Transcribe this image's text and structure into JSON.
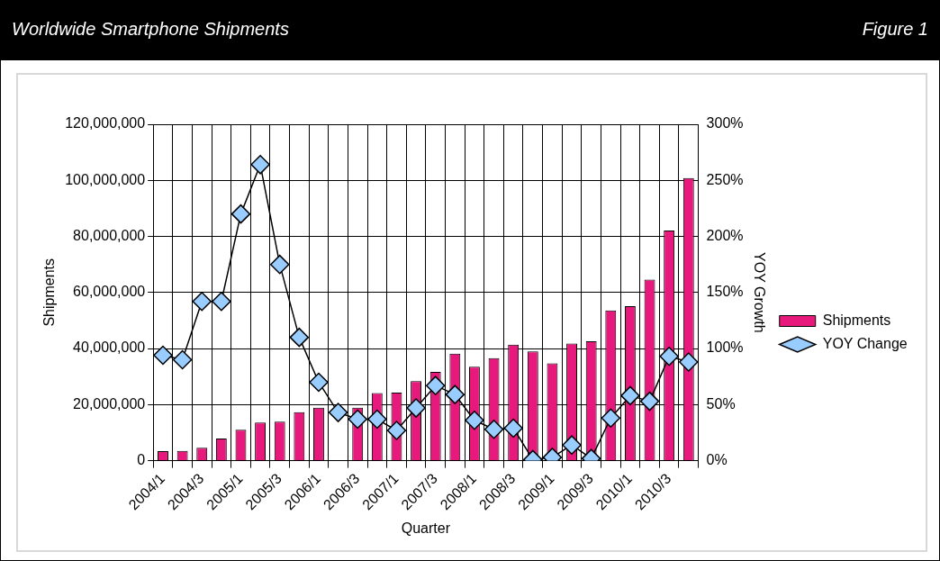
{
  "chart_data": {
    "type": "bar",
    "title": "Worldwide Smartphone Shipments",
    "annotations": [
      "Figure 1"
    ],
    "xlabel": "Quarter",
    "ylabel": "Shipments",
    "y2label": "YOY Growth",
    "categories": [
      "2004/1",
      null,
      "2004/3",
      null,
      "2005/1",
      null,
      "2005/3",
      null,
      "2006/1",
      null,
      "2006/3",
      null,
      "2007/1",
      null,
      "2007/3",
      null,
      "2008/1",
      null,
      "2008/3",
      null,
      "2009/1",
      null,
      "2009/3",
      null,
      "2010/1",
      null,
      "2010/3",
      null
    ],
    "series": [
      {
        "name": "Shipments",
        "color": "#e8197d",
        "values": [
          3400000,
          3500000,
          4600000,
          7900000,
          11000000,
          13600000,
          13900000,
          17300000,
          18900000,
          null,
          18900000,
          24100000,
          24300000,
          28400000,
          31700000,
          38200000,
          33500000,
          36600000,
          41400000,
          39000000,
          34700000,
          41800000,
          42600000,
          53600000,
          55100000,
          64600000,
          82100000,
          100800000
        ]
      },
      {
        "name": "YOY Change",
        "type": "line",
        "axis": "y2",
        "color": "#000000",
        "marker": "diamond",
        "values": [
          94,
          90,
          142,
          142,
          220,
          264,
          175,
          110,
          70,
          43,
          37,
          37,
          27,
          47,
          67,
          59,
          36,
          28,
          29,
          1,
          3,
          14,
          2,
          38,
          58,
          53,
          93,
          88
        ]
      }
    ],
    "ylim": [
      0,
      120000000
    ],
    "yticks": [
      {
        "value": 0,
        "label": "0"
      },
      {
        "value": 20000000,
        "label": "20,000,000"
      },
      {
        "value": 40000000,
        "label": "40,000,000"
      },
      {
        "value": 60000000,
        "label": "60,000,000"
      },
      {
        "value": 80000000,
        "label": "80,000,000"
      },
      {
        "value": 100000000,
        "label": "100,000,000"
      },
      {
        "value": 120000000,
        "label": "120,000,000"
      }
    ],
    "y2lim": [
      0,
      300
    ],
    "y2ticks": [
      {
        "value": 0,
        "label": "0%"
      },
      {
        "value": 50,
        "label": "50%"
      },
      {
        "value": 100,
        "label": "100%"
      },
      {
        "value": 150,
        "label": "150%"
      },
      {
        "value": 200,
        "label": "200%"
      },
      {
        "value": 250,
        "label": "250%"
      },
      {
        "value": 300,
        "label": "300%"
      }
    ],
    "grid": true,
    "legend": "right"
  }
}
